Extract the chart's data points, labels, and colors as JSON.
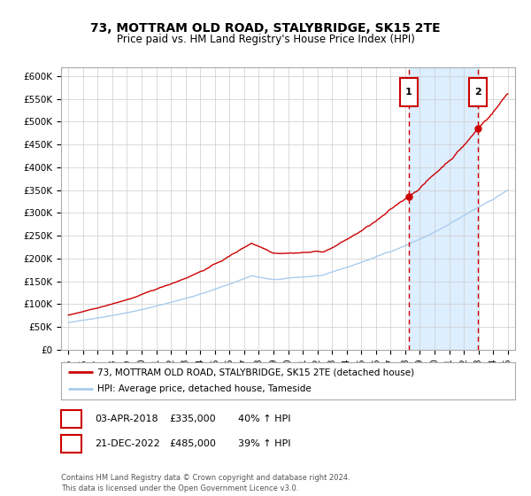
{
  "title": "73, MOTTRAM OLD ROAD, STALYBRIDGE, SK15 2TE",
  "subtitle": "Price paid vs. HM Land Registry's House Price Index (HPI)",
  "legend_line1": "73, MOTTRAM OLD ROAD, STALYBRIDGE, SK15 2TE (detached house)",
  "legend_line2": "HPI: Average price, detached house, Tameside",
  "annotation1_label": "1",
  "annotation1_date": "03-APR-2018",
  "annotation1_price": "£335,000",
  "annotation1_hpi": "40% ↑ HPI",
  "annotation2_label": "2",
  "annotation2_date": "21-DEC-2022",
  "annotation2_price": "£485,000",
  "annotation2_hpi": "39% ↑ HPI",
  "footer": "Contains HM Land Registry data © Crown copyright and database right 2024.\nThis data is licensed under the Open Government Licence v3.0.",
  "sale1_year": 2018.25,
  "sale1_value": 335000,
  "sale2_year": 2022.97,
  "sale2_value": 485000,
  "hpi_color": "#aaccee",
  "property_color": "#cc0000",
  "vline_color": "#cc0000",
  "shade_color": "#ddeeff",
  "background_color": "#ffffff",
  "grid_color": "#cccccc",
  "ylim": [
    0,
    620000
  ],
  "yticks": [
    0,
    50000,
    100000,
    150000,
    200000,
    250000,
    300000,
    350000,
    400000,
    450000,
    500000,
    550000,
    600000
  ],
  "xlim_start": 1994.5,
  "xlim_end": 2025.5
}
